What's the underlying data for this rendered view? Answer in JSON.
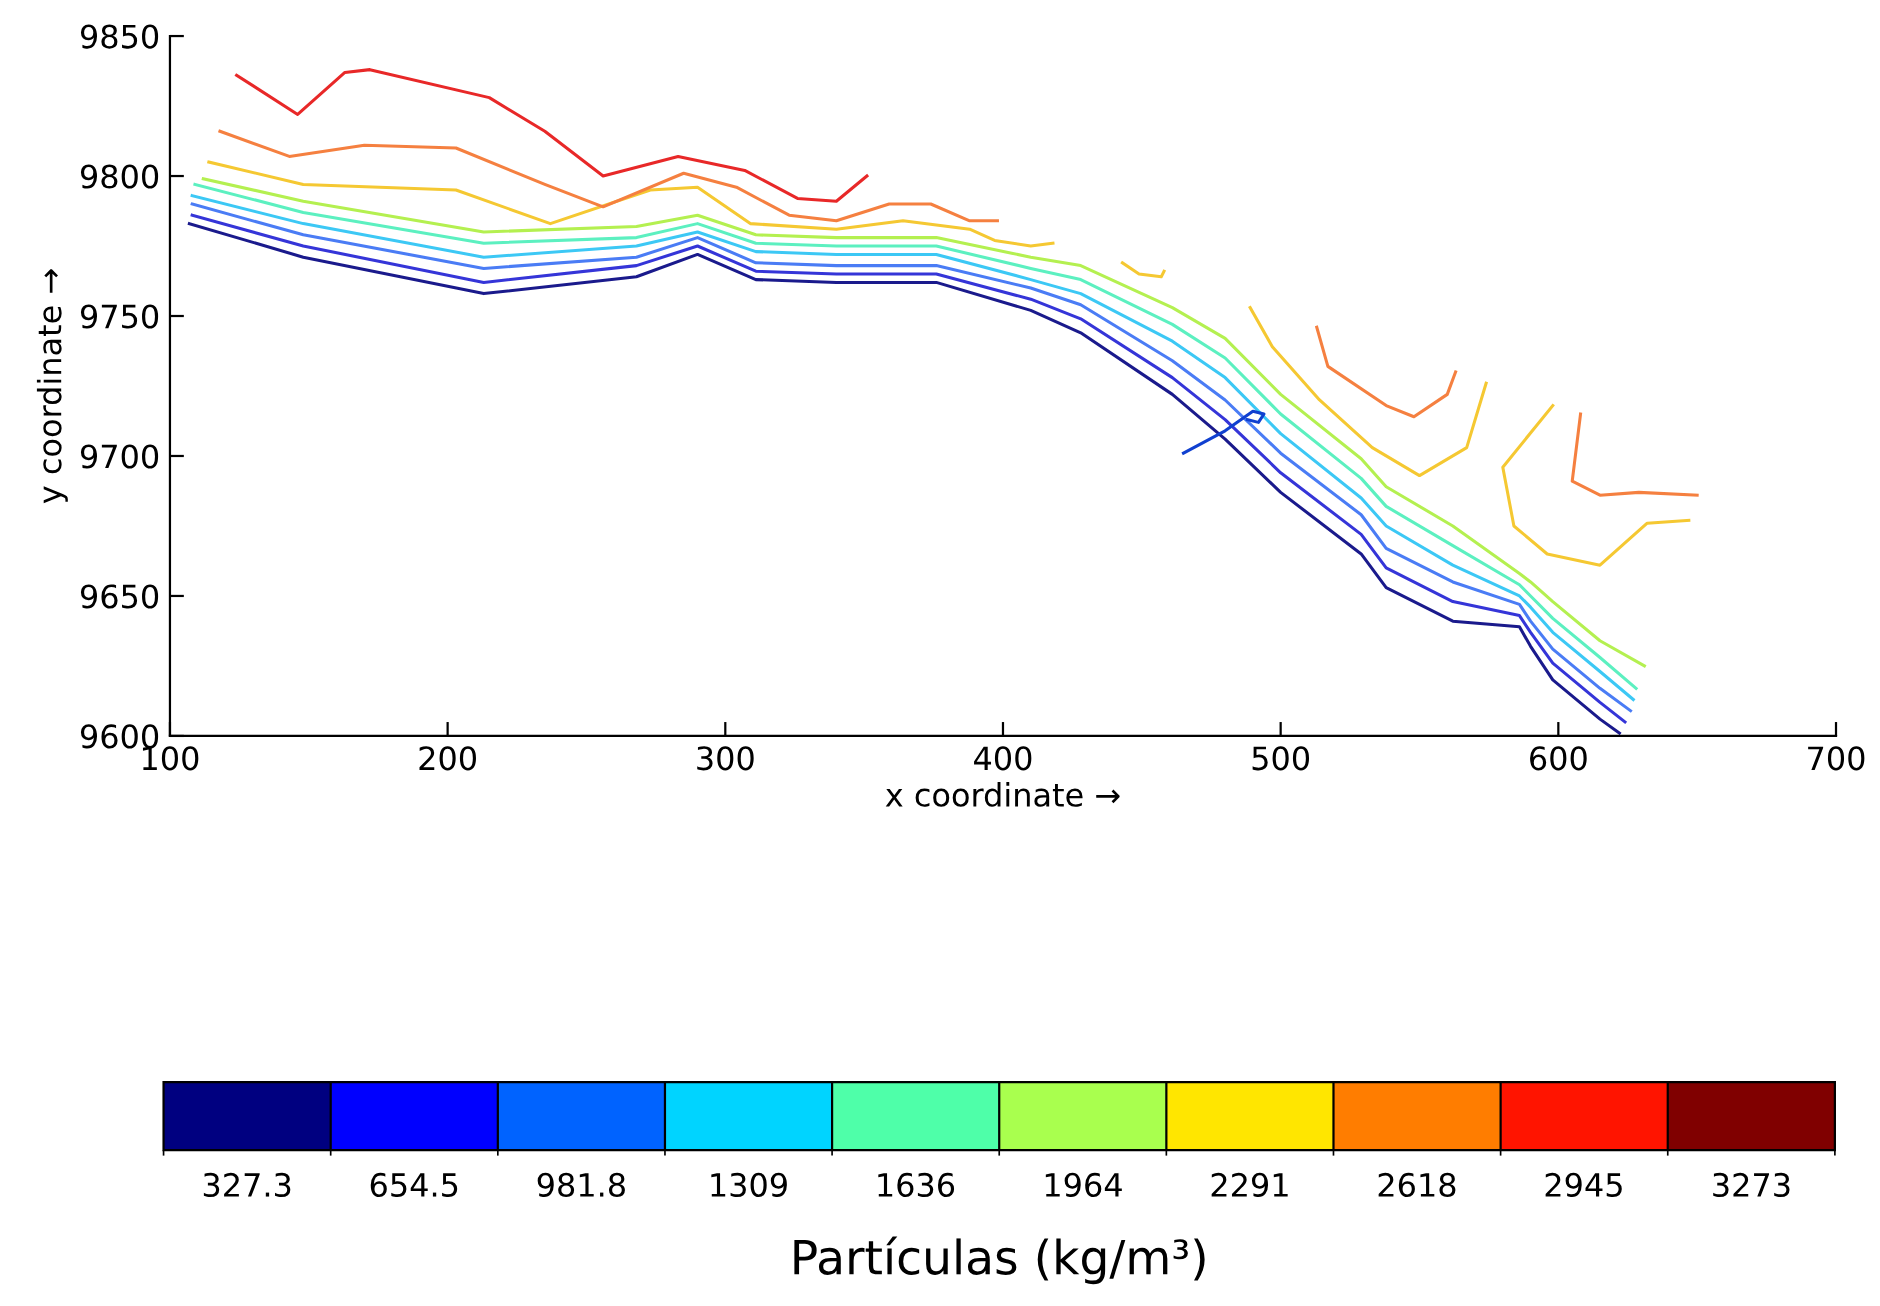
{
  "chart_data": {
    "type": "line",
    "xlabel": "x coordinate →",
    "ylabel": "y coordinate →",
    "clabel": "Partículas (kg/m³)",
    "xlim": [
      100,
      700
    ],
    "ylim": [
      9600,
      9850
    ],
    "xticks": [
      100,
      200,
      300,
      400,
      500,
      600,
      700
    ],
    "yticks": [
      9600,
      9650,
      9700,
      9750,
      9800,
      9850
    ],
    "clim": [
      163.6,
      3436.4
    ],
    "cticks": [
      {
        "value": 327.3,
        "label": "327.3"
      },
      {
        "value": 654.5,
        "label": "654.5"
      },
      {
        "value": 981.8,
        "label": "981.8"
      },
      1309,
      1636,
      1964,
      2291,
      2618,
      2945,
      3273
    ],
    "grid": false,
    "legend": false,
    "series": [
      {
        "color": "#1a1a8c",
        "x": [
          107,
          148,
          213,
          268,
          290,
          311,
          340,
          376,
          410,
          428,
          461,
          480,
          500,
          529,
          538,
          562,
          586,
          590,
          598,
          615,
          622
        ],
        "values": [
          9783,
          9771,
          9758,
          9764,
          9772,
          9763,
          9762,
          9762,
          9752,
          9744,
          9722,
          9706,
          9687,
          9665,
          9653,
          9641,
          9639,
          9632,
          9620,
          9606,
          9601
        ]
      },
      {
        "color": "#3535d8",
        "x": [
          108,
          148,
          213,
          268,
          290,
          311,
          340,
          376,
          410,
          428,
          461,
          480,
          500,
          529,
          538,
          562,
          586,
          590,
          598,
          615,
          624
        ],
        "values": [
          9786,
          9775,
          9762,
          9768,
          9775,
          9766,
          9765,
          9765,
          9756,
          9749,
          9728,
          9713,
          9694,
          9672,
          9660,
          9648,
          9643,
          9637,
          9626,
          9612,
          9605
        ]
      },
      {
        "color": "#4a7cf5",
        "x": [
          108,
          148,
          213,
          268,
          290,
          311,
          340,
          376,
          410,
          428,
          461,
          480,
          500,
          529,
          538,
          562,
          586,
          590,
          598,
          615,
          626
        ],
        "values": [
          9790,
          9779,
          9767,
          9771,
          9778,
          9769,
          9768,
          9768,
          9760,
          9754,
          9734,
          9720,
          9701,
          9679,
          9667,
          9655,
          9647,
          9641,
          9631,
          9617,
          9609
        ]
      },
      {
        "color": "#3cc8f5",
        "x": [
          108,
          148,
          213,
          268,
          290,
          311,
          340,
          376,
          410,
          428,
          461,
          480,
          500,
          529,
          538,
          562,
          586,
          590,
          598,
          615,
          627
        ],
        "values": [
          9793,
          9783,
          9771,
          9775,
          9780,
          9773,
          9772,
          9772,
          9763,
          9758,
          9741,
          9728,
          9708,
          9685,
          9675,
          9661,
          9650,
          9646,
          9637,
          9623,
          9613
        ]
      },
      {
        "color": "#5cf0c0",
        "x": [
          109,
          148,
          213,
          268,
          290,
          311,
          340,
          376,
          410,
          428,
          461,
          480,
          500,
          529,
          538,
          562,
          586,
          590,
          598,
          615,
          628
        ],
        "values": [
          9797,
          9787,
          9776,
          9778,
          9783,
          9776,
          9775,
          9775,
          9767,
          9763,
          9747,
          9735,
          9715,
          9692,
          9682,
          9668,
          9654,
          9650,
          9642,
          9628,
          9617
        ]
      },
      {
        "color": "#b4f050",
        "x": [
          112,
          148,
          213,
          268,
          290,
          311,
          340,
          376,
          410,
          428,
          461,
          480,
          500,
          529,
          538,
          562,
          586,
          590,
          598,
          615,
          631
        ],
        "values": [
          9799,
          9791,
          9780,
          9782,
          9786,
          9779,
          9778,
          9778,
          9771,
          9768,
          9753,
          9742,
          9722,
          9699,
          9689,
          9675,
          9658,
          9655,
          9648,
          9634,
          9625
        ]
      },
      {
        "color": "#f5c832",
        "x": [
          114,
          148,
          203,
          237,
          273,
          290,
          309,
          340,
          364,
          388,
          397,
          410,
          418
        ],
        "values": [
          9805,
          9797,
          9795,
          9783,
          9795,
          9796,
          9783,
          9781,
          9784,
          9781,
          9777,
          9775,
          9776
        ]
      },
      {
        "color": "#f5c832",
        "x": [
          443,
          449,
          457,
          458
        ],
        "values": [
          9769,
          9765,
          9764,
          9766
        ]
      },
      {
        "color": "#f5c832",
        "x": [
          489,
          497,
          514,
          533,
          550,
          567,
          574
        ],
        "values": [
          9753,
          9739,
          9720,
          9703,
          9693,
          9703,
          9726
        ]
      },
      {
        "color": "#f5c832",
        "x": [
          598,
          580,
          584,
          596,
          615,
          632,
          647
        ],
        "values": [
          9718,
          9696,
          9675,
          9665,
          9661,
          9676,
          9677
        ]
      },
      {
        "color": "#f58040",
        "x": [
          118,
          143,
          170,
          203,
          235,
          256,
          285,
          304,
          323,
          340,
          359,
          374,
          388,
          398
        ],
        "values": [
          9816,
          9807,
          9811,
          9810,
          9797,
          9789,
          9801,
          9796,
          9786,
          9784,
          9790,
          9790,
          9784,
          9784
        ]
      },
      {
        "color": "#f58040",
        "x": [
          513,
          517,
          538,
          548,
          560,
          563
        ],
        "values": [
          9746,
          9732,
          9718,
          9714,
          9722,
          9730
        ]
      },
      {
        "color": "#f58040",
        "x": [
          608,
          605,
          615,
          629,
          650
        ],
        "values": [
          9715,
          9691,
          9686,
          9687,
          9686
        ]
      },
      {
        "color": "#e82828",
        "x": [
          124,
          146,
          163,
          172,
          215,
          235,
          256,
          283,
          307,
          326,
          340,
          351
        ],
        "values": [
          9836,
          9822,
          9837,
          9838,
          9828,
          9816,
          9800,
          9807,
          9802,
          9792,
          9791,
          9800
        ]
      },
      {
        "color": "#1040d0",
        "x": [
          465,
          480,
          490,
          494,
          492,
          488
        ],
        "values": [
          9701,
          9709,
          9716,
          9715,
          9712,
          9713
        ]
      }
    ]
  }
}
